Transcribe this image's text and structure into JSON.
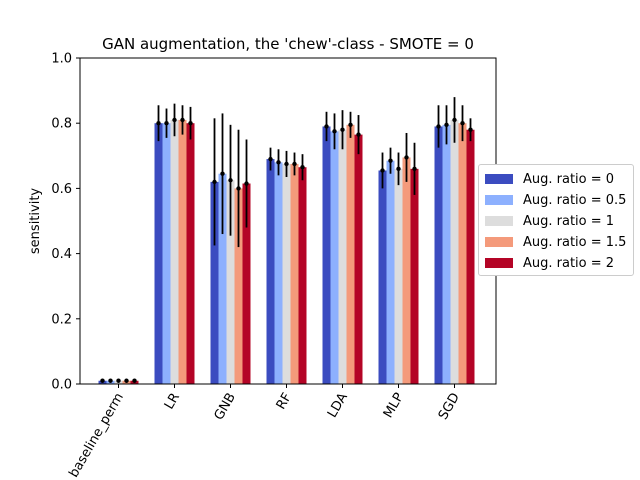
{
  "chart_data": {
    "type": "bar",
    "title": "GAN augmentation, the 'chew'-class - SMOTE = 0",
    "xlabel": "",
    "ylabel": "sensitivity",
    "ylim": [
      0,
      1.0
    ],
    "yticks": [
      "0.0",
      "0.2",
      "0.4",
      "0.6",
      "0.8",
      "1.0"
    ],
    "ytick_values": [
      0,
      0.2,
      0.4,
      0.6,
      0.8,
      1.0
    ],
    "grid": false,
    "legend_position": "right",
    "categories": [
      "baseline_perm",
      "LR",
      "GNB",
      "RF",
      "LDA",
      "MLP",
      "SGD"
    ],
    "series": [
      {
        "name": "Aug. ratio = 0",
        "color": "#3b4cc0",
        "values": [
          0.01,
          0.8,
          0.62,
          0.69,
          0.79,
          0.655,
          0.79
        ],
        "errors": [
          0.005,
          0.055,
          0.195,
          0.035,
          0.045,
          0.055,
          0.065
        ]
      },
      {
        "name": "Aug. ratio = 0.5",
        "color": "#8db0fe",
        "values": [
          0.01,
          0.8,
          0.645,
          0.68,
          0.775,
          0.685,
          0.795
        ],
        "errors": [
          0.005,
          0.045,
          0.185,
          0.04,
          0.055,
          0.04,
          0.06
        ]
      },
      {
        "name": "Aug. ratio = 1",
        "color": "#dddddd",
        "values": [
          0.01,
          0.81,
          0.625,
          0.675,
          0.78,
          0.66,
          0.81
        ],
        "errors": [
          0.005,
          0.05,
          0.17,
          0.04,
          0.06,
          0.05,
          0.07
        ]
      },
      {
        "name": "Aug. ratio = 1.5",
        "color": "#f49a7b",
        "values": [
          0.01,
          0.81,
          0.6,
          0.675,
          0.795,
          0.695,
          0.8
        ],
        "errors": [
          0.005,
          0.045,
          0.18,
          0.035,
          0.04,
          0.075,
          0.055
        ]
      },
      {
        "name": "Aug. ratio = 2",
        "color": "#b40426",
        "values": [
          0.01,
          0.8,
          0.615,
          0.665,
          0.765,
          0.66,
          0.78
        ],
        "errors": [
          0.005,
          0.05,
          0.135,
          0.04,
          0.06,
          0.08,
          0.035
        ]
      }
    ]
  }
}
